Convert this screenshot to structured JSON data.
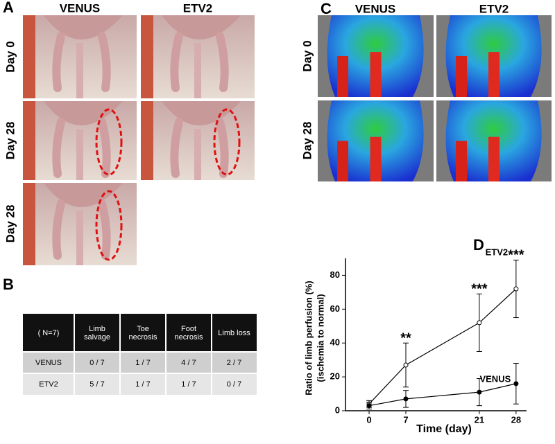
{
  "panel_a": {
    "label": "A",
    "columns": [
      "VENUS",
      "ETV2"
    ],
    "rows": [
      "Day 0",
      "Day 28",
      "Day 28"
    ]
  },
  "panel_b": {
    "label": "B",
    "table": {
      "header": [
        "( N=7)",
        "Limb salvage",
        "Toe necrosis",
        "Foot necrosis",
        "Limb loss"
      ],
      "rows": [
        [
          "VENUS",
          "0 / 7",
          "1 / 7",
          "4 / 7",
          "2 / 7"
        ],
        [
          "ETV2",
          "5 / 7",
          "1 / 7",
          "1 / 7",
          "0 / 7"
        ]
      ]
    }
  },
  "panel_c": {
    "label": "C",
    "columns": [
      "VENUS",
      "ETV2"
    ],
    "rows": [
      "Day 0",
      "Day 28"
    ]
  },
  "chart_data": {
    "type": "line",
    "label": "D",
    "x_label": "Time (day)",
    "y_label": [
      "Ratio of limb perfusion (%)",
      "(ischemia to normal)"
    ],
    "x": [
      0,
      7,
      21,
      28
    ],
    "series": [
      {
        "name": "ETV2",
        "color": "#000000",
        "filled": false,
        "values": [
          4,
          27,
          52,
          72
        ],
        "errors": [
          2,
          13,
          17,
          17
        ]
      },
      {
        "name": "VENUS",
        "color": "#000000",
        "filled": true,
        "values": [
          3,
          7,
          11,
          16
        ],
        "errors": [
          2,
          5,
          8,
          12
        ]
      }
    ],
    "annotations": [
      {
        "x": 7,
        "label": "**"
      },
      {
        "x": 21,
        "label": "***"
      },
      {
        "x": 28,
        "label": "***"
      }
    ],
    "xlim": [
      -4.5,
      30
    ],
    "ylim": [
      0,
      90
    ],
    "xticks": [
      0,
      7,
      21,
      28
    ],
    "yticks": [
      0,
      20,
      40,
      60,
      80
    ]
  }
}
